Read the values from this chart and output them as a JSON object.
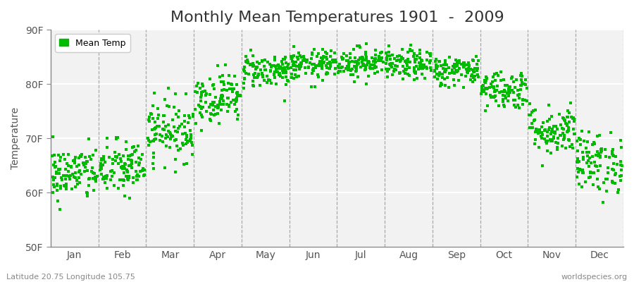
{
  "title": "Monthly Mean Temperatures 1901  -  2009",
  "ylabel": "Temperature",
  "ylim": [
    50,
    90
  ],
  "ytick_labels": [
    "50F",
    "60F",
    "70F",
    "80F",
    "90F"
  ],
  "ytick_values": [
    50,
    60,
    70,
    80,
    90
  ],
  "month_labels": [
    "Jan",
    "Feb",
    "Mar",
    "Apr",
    "May",
    "Jun",
    "Jul",
    "Aug",
    "Sep",
    "Oct",
    "Nov",
    "Dec"
  ],
  "month_dividers": [
    1,
    2,
    3,
    4,
    5,
    6,
    7,
    8,
    9,
    10,
    11,
    12
  ],
  "xlim": [
    0,
    12
  ],
  "dot_color": "#00bb00",
  "background_color": "#f2f2f2",
  "legend_label": "Mean Temp",
  "footer_left": "Latitude 20.75 Longitude 105.75",
  "footer_right": "worldspecies.org",
  "title_fontsize": 16,
  "axis_label_fontsize": 10,
  "tick_fontsize": 10,
  "n_years": 109,
  "monthly_mean_F": [
    63.5,
    64.5,
    71.5,
    77.5,
    82.5,
    83.5,
    84.0,
    83.5,
    82.5,
    79.0,
    71.5,
    65.5
  ],
  "monthly_std_F": [
    2.5,
    2.6,
    2.8,
    2.3,
    1.6,
    1.4,
    1.4,
    1.4,
    1.4,
    1.8,
    2.3,
    2.8
  ],
  "random_seed": 42
}
